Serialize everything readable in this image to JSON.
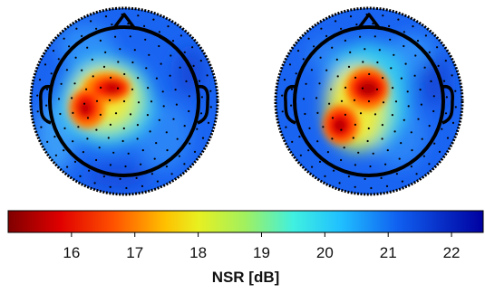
{
  "chart_data": {
    "type": "heatmap",
    "subtype": "eeg-topographic-map",
    "maps": [
      {
        "name": "",
        "hotspots": [
          {
            "region": "left frontal",
            "nsr_db": 15.6
          },
          {
            "region": "left fronto-temporal",
            "nsr_db": 15.8
          }
        ],
        "background_nsr_db": 21.8
      },
      {
        "name": "",
        "hotspots": [
          {
            "region": "frontal",
            "nsr_db": 15.3
          },
          {
            "region": "left temporal",
            "nsr_db": 15.5
          }
        ],
        "background_nsr_db": 21.8
      }
    ],
    "colorbar": {
      "label": "NSR [dB]",
      "ticks": [
        16,
        17,
        18,
        19,
        20,
        21,
        22
      ],
      "range": [
        15.0,
        22.5
      ],
      "colormap": "jet"
    }
  }
}
